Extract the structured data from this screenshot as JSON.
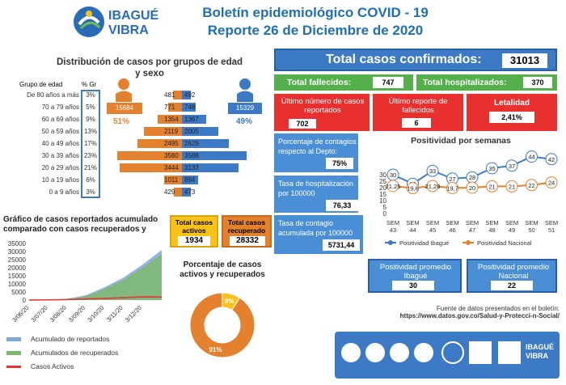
{
  "header": {
    "title_line1": "Boletín epidemiológico COVID - 19",
    "title_line2": "Reporte 26 de Diciembre de 2020",
    "logo_text_1": "IBAGUÉ",
    "logo_text_2": "VIBRA"
  },
  "age": {
    "title_line1": "Distribución de casos por grupos de edad",
    "title_line2": "y sexo",
    "col_group": "Grupo de edad",
    "col_pct": "% Gr",
    "female_total": "15684",
    "female_pct": "51%",
    "male_total": "15329",
    "male_pct": "49%",
    "rows": [
      {
        "label": "De 80 años a más",
        "pct": "3%",
        "f": 481,
        "m": 492
      },
      {
        "label": "70 a 79 años",
        "pct": "5%",
        "f": 771,
        "m": 748
      },
      {
        "label": "60 a 69 años",
        "pct": "9%",
        "f": 1354,
        "m": 1367
      },
      {
        "label": "50 a 59 años",
        "pct": "13%",
        "f": 2119,
        "m": 2005
      },
      {
        "label": "40 a 49 años",
        "pct": "17%",
        "f": 2495,
        "m": 2629
      },
      {
        "label": "30 a 39 años",
        "pct": "23%",
        "f": 3580,
        "m": 3588
      },
      {
        "label": "20 a 29 años",
        "pct": "21%",
        "f": 3444,
        "m": 3133
      },
      {
        "label": "10 a 19 años",
        "pct": "6%",
        "f": 1011,
        "m": 894
      },
      {
        "label": "0 a 9 años",
        "pct": "3%",
        "f": 429,
        "m": 473
      }
    ]
  },
  "totals": {
    "confirmed_label": "Total casos confirmados:",
    "confirmed_value": "31013",
    "deaths_label": "Total fallecidos:",
    "deaths_value": "747",
    "hosp_label": "Total hospitalizados:",
    "hosp_value": "370",
    "last_cases_label": "Último número de casos reportados",
    "last_cases_value": "702",
    "last_deaths_label": "Último reporte de fallecidos",
    "last_deaths_value": "6",
    "lethality_label": "Letalidad",
    "lethality_value": "2,41%",
    "contagion_pct_label": "Porcentaje de contagios respecto al Depto:",
    "contagion_pct_value": "75%",
    "hosp_rate_label": "Tasa de hospitalización por 100000",
    "hosp_rate_value": "76,33",
    "cum_rate_label": "Tasa de contagio acumulada por 100000",
    "cum_rate_value": "5731,44",
    "active_label": "Total casos activos",
    "active_value": "1934",
    "recovered_label": "Total casos recuperado",
    "recovered_value": "28332",
    "avg_ibague_label": "Positividad promedio Ibagué",
    "avg_ibague_value": "30",
    "avg_nacional_label": "Positividad promedio Nacional",
    "avg_nacional_value": "22"
  },
  "source": {
    "line1": "Fuente de datos presentados en el boletín:",
    "line2": "https://www.datos.gov.co/Salud-y-Protecci-n-Social/"
  },
  "colors": {
    "blue": "#3d7ac5",
    "orange": "#e4812e",
    "red": "#e8302e",
    "green": "#53b04a",
    "yellow": "#f9c21a"
  },
  "chart_data": [
    {
      "type": "line",
      "title": "Positividad por semanas",
      "categories": [
        "SEM 43",
        "SEM 44",
        "SEM 45",
        "SEM 46",
        "SEM 47",
        "SEM 48",
        "SEM 49",
        "SEM 50",
        "SEM 51"
      ],
      "series": [
        {
          "name": "Positividad Ibagué",
          "values": [
            30,
            23,
            33,
            27,
            28,
            35,
            37,
            44,
            42
          ]
        },
        {
          "name": "Positividad Nacional",
          "values": [
            21.25,
            19.6,
            21.28,
            19.7,
            20,
            21,
            21,
            22,
            24
          ]
        }
      ],
      "labels_ibague": [
        "30",
        "23",
        "33",
        "27",
        "28",
        "35",
        "37",
        "44",
        "42"
      ],
      "labels_nacional": [
        "21,25",
        "19,6",
        "21,28",
        "19,7",
        "20",
        "21",
        "21",
        "22",
        "24"
      ],
      "yticks": [
        "30",
        "25",
        "20",
        "15",
        "10",
        "5",
        "0"
      ],
      "ylim": [
        0,
        45
      ],
      "legend": "bottom"
    },
    {
      "type": "area",
      "title": "Gráfico de casos reportados acumulado comparado con casos recuperados y",
      "yticks": [
        "35000",
        "30000",
        "25000",
        "20000",
        "15000",
        "10000",
        "5000",
        "0"
      ],
      "xticks": [
        "3/06/20",
        "3/07/20",
        "3/08/20",
        "3/09/20",
        "3/10/20",
        "3/11/20",
        "3/12/20"
      ],
      "series": [
        {
          "name": "Acumulado de reportados",
          "values": [
            0,
            200,
            800,
            3000,
            8000,
            14000,
            22000,
            31013
          ]
        },
        {
          "name": "Acumulados de recuperados",
          "values": [
            0,
            100,
            500,
            2300,
            7000,
            12500,
            20000,
            28332
          ]
        },
        {
          "name": "Casos Activos",
          "values": [
            0,
            100,
            300,
            700,
            1000,
            1500,
            2000,
            1934
          ]
        }
      ],
      "ylim": [
        0,
        35000
      ]
    },
    {
      "type": "pie",
      "title": "Porcentaje de casos activos y recuperados",
      "slices": [
        {
          "label": "9%",
          "value": 9
        },
        {
          "label": "91%",
          "value": 91
        }
      ]
    }
  ]
}
